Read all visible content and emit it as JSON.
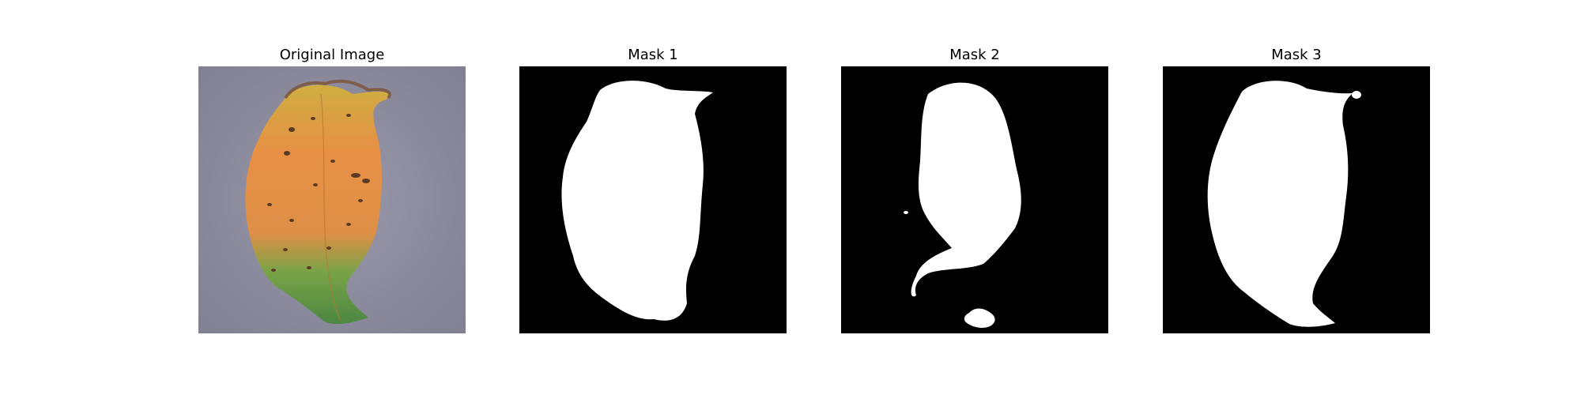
{
  "panels": [
    {
      "title": "Original Image"
    },
    {
      "title": "Mask 1"
    },
    {
      "title": "Mask 2"
    },
    {
      "title": "Mask 3"
    }
  ],
  "colors": {
    "background": "#c7c6d0",
    "leaf_orange": "#e58a45",
    "leaf_yellow": "#d9b844",
    "leaf_green": "#5f9a47",
    "mask_foreground": "#ffffff",
    "mask_background": "#000000"
  }
}
